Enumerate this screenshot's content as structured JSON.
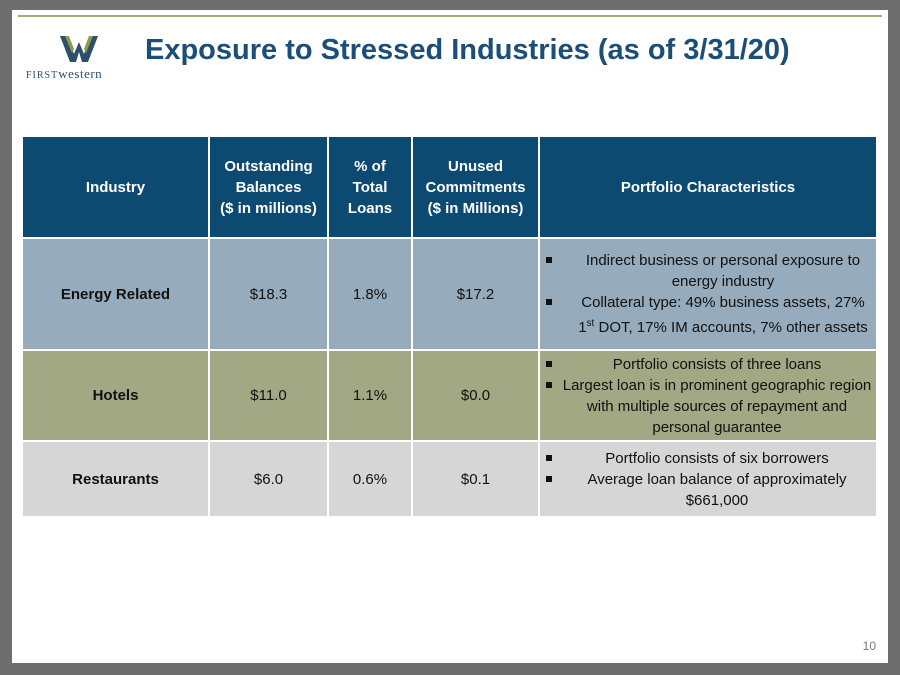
{
  "logo": {
    "first": "FIRST",
    "western": "western"
  },
  "title": "Exposure to Stressed Industries (as of 3/31/20)",
  "table": {
    "headers": [
      {
        "lines": [
          "Industry"
        ]
      },
      {
        "lines": [
          "Outstanding",
          "Balances",
          "($ in millions)"
        ]
      },
      {
        "lines": [
          "% of",
          "Total",
          "Loans"
        ]
      },
      {
        "lines": [
          "Unused",
          "Commitments",
          "($ in Millions)"
        ]
      },
      {
        "lines": [
          "Portfolio Characteristics"
        ]
      }
    ],
    "rows": [
      {
        "industry": "Energy Related",
        "balance": "$18.3",
        "pct": "1.8%",
        "unused": "$17.2",
        "bullets": [
          {
            "text": "Indirect business or personal exposure to energy industry"
          },
          {
            "pre": "Collateral type: 49% business assets, 27% 1",
            "sup": "st",
            "post": " DOT,  17% IM accounts, 7% other assets"
          }
        ]
      },
      {
        "industry": "Hotels",
        "balance": "$11.0",
        "pct": "1.1%",
        "unused": "$0.0",
        "bullets": [
          "Portfolio consists of three loans",
          "Largest loan is in prominent geographic region with multiple sources of repayment and personal guarantee"
        ]
      },
      {
        "industry": "Restaurants",
        "balance": "$6.0",
        "pct": "0.6%",
        "unused": "$0.1",
        "bullets": [
          "Portfolio consists of six borrowers",
          "Average loan balance of approximately $661,000"
        ]
      }
    ]
  },
  "page_number": "10",
  "colors": {
    "header_bg": "#0d4a72",
    "energy_row": "#96acbd",
    "hotels_row": "#a3a884",
    "restaurants_row": "#d6d6d6",
    "title": "#1b4f79"
  }
}
